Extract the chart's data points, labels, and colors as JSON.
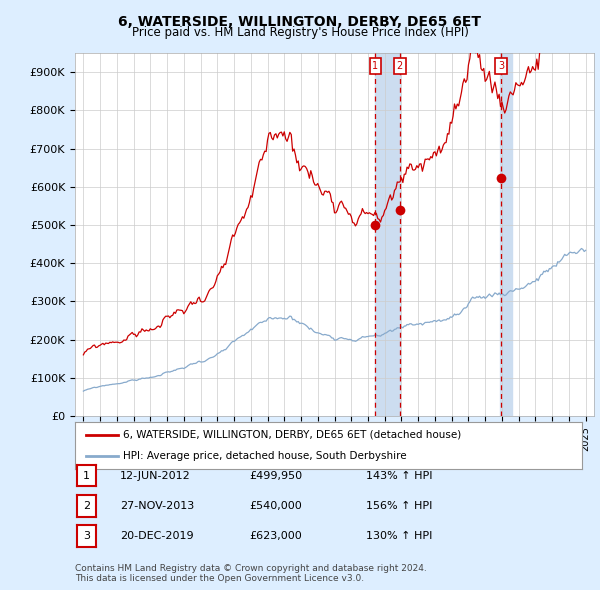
{
  "title": "6, WATERSIDE, WILLINGTON, DERBY, DE65 6ET",
  "subtitle": "Price paid vs. HM Land Registry's House Price Index (HPI)",
  "ylabel_ticks": [
    "£0",
    "£100K",
    "£200K",
    "£300K",
    "£400K",
    "£500K",
    "£600K",
    "£700K",
    "£800K",
    "£900K"
  ],
  "y_values": [
    0,
    100000,
    200000,
    300000,
    400000,
    500000,
    600000,
    700000,
    800000,
    900000
  ],
  "ylim": [
    0,
    950000
  ],
  "xlim_start": 1994.5,
  "xlim_end": 2025.5,
  "xtick_years": [
    1995,
    1996,
    1997,
    1998,
    1999,
    2000,
    2001,
    2002,
    2003,
    2004,
    2005,
    2006,
    2007,
    2008,
    2009,
    2010,
    2011,
    2012,
    2013,
    2014,
    2015,
    2016,
    2017,
    2018,
    2019,
    2020,
    2021,
    2022,
    2023,
    2024,
    2025
  ],
  "sale_markers": [
    {
      "label": "1",
      "date": 2012.44,
      "price": 499950
    },
    {
      "label": "2",
      "date": 2013.9,
      "price": 540000
    },
    {
      "label": "3",
      "date": 2019.96,
      "price": 623000
    }
  ],
  "sale_dates_text": [
    {
      "num": "1",
      "date": "12-JUN-2012",
      "price": "£499,950",
      "pct": "143% ↑ HPI"
    },
    {
      "num": "2",
      "date": "27-NOV-2013",
      "price": "£540,000",
      "pct": "156% ↑ HPI"
    },
    {
      "num": "3",
      "date": "20-DEC-2019",
      "price": "£623,000",
      "pct": "130% ↑ HPI"
    }
  ],
  "legend_line1": "6, WATERSIDE, WILLINGTON, DERBY, DE65 6ET (detached house)",
  "legend_line2": "HPI: Average price, detached house, South Derbyshire",
  "footnote": "Contains HM Land Registry data © Crown copyright and database right 2024.\nThis data is licensed under the Open Government Licence v3.0.",
  "red_line_color": "#cc0000",
  "blue_line_color": "#88aacc",
  "background_color": "#ddeeff",
  "plot_bg_color": "#ffffff",
  "shade_color": "#ccddf0",
  "grid_color": "#cccccc",
  "vline_color": "#cc0000",
  "label_box_color": "#cc0000"
}
